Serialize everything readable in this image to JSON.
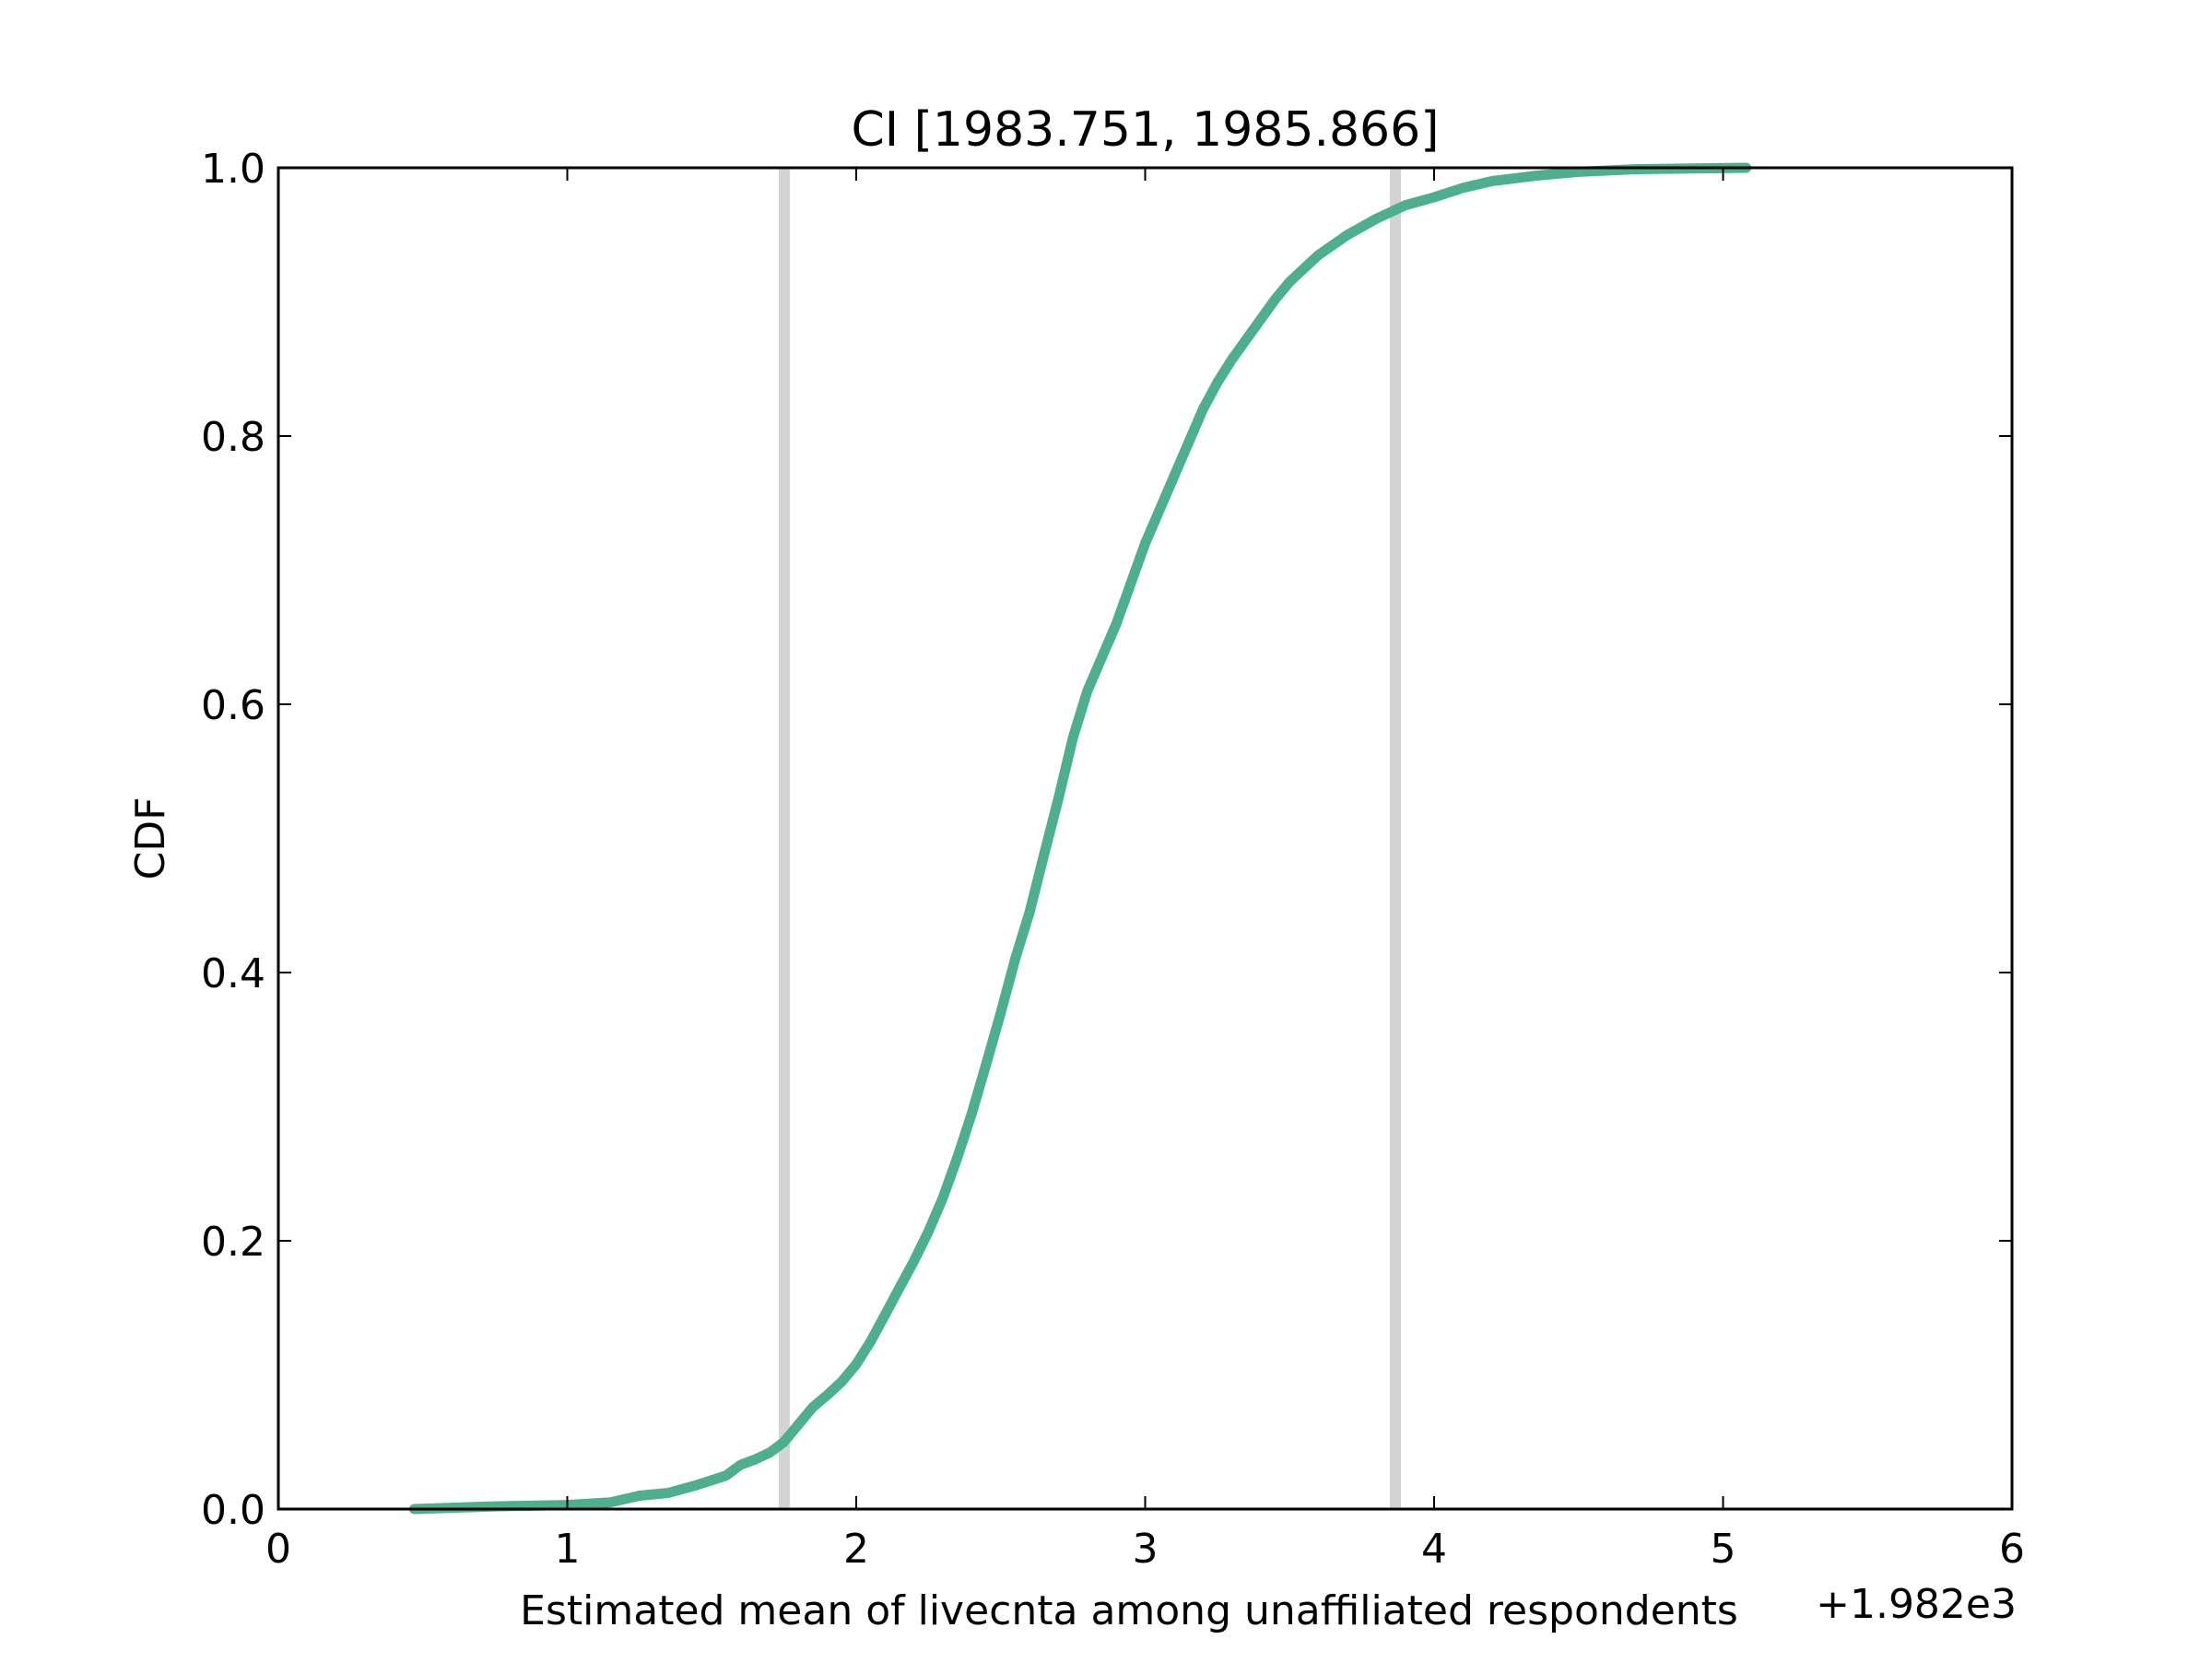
{
  "chart_data": {
    "type": "line",
    "title": "CI [1983.751, 1985.866]",
    "xlabel": "Estimated mean of livecnta among unaffiliated respondents",
    "ylabel": "CDF",
    "x_offset_label": "+1.982e3",
    "xlim": [
      0,
      6
    ],
    "ylim": [
      0,
      1
    ],
    "xticks": [
      0,
      1,
      2,
      3,
      4,
      5,
      6
    ],
    "xtick_labels": [
      "0",
      "1",
      "2",
      "3",
      "4",
      "5",
      "6"
    ],
    "yticks": [
      0,
      0.2,
      0.4,
      0.6,
      0.8,
      1.0
    ],
    "ytick_labels": [
      "0.0",
      "0.2",
      "0.4",
      "0.6",
      "0.8",
      "1.0"
    ],
    "grid": false,
    "series": [
      {
        "color": "#4daf8f",
        "points": [
          [
            0.47,
            0.0
          ],
          [
            0.75,
            0.002
          ],
          [
            1.0,
            0.003
          ],
          [
            1.15,
            0.005
          ],
          [
            1.25,
            0.01
          ],
          [
            1.35,
            0.012
          ],
          [
            1.45,
            0.018
          ],
          [
            1.55,
            0.025
          ],
          [
            1.6,
            0.033
          ],
          [
            1.65,
            0.037
          ],
          [
            1.7,
            0.042
          ],
          [
            1.75,
            0.05
          ],
          [
            1.8,
            0.063
          ],
          [
            1.85,
            0.076
          ],
          [
            1.9,
            0.085
          ],
          [
            1.95,
            0.095
          ],
          [
            2.0,
            0.108
          ],
          [
            2.05,
            0.125
          ],
          [
            2.1,
            0.145
          ],
          [
            2.15,
            0.165
          ],
          [
            2.2,
            0.185
          ],
          [
            2.25,
            0.207
          ],
          [
            2.3,
            0.232
          ],
          [
            2.35,
            0.262
          ],
          [
            2.4,
            0.295
          ],
          [
            2.45,
            0.332
          ],
          [
            2.5,
            0.37
          ],
          [
            2.55,
            0.41
          ],
          [
            2.6,
            0.445
          ],
          [
            2.65,
            0.488
          ],
          [
            2.7,
            0.53
          ],
          [
            2.75,
            0.575
          ],
          [
            2.8,
            0.61
          ],
          [
            2.85,
            0.635
          ],
          [
            2.9,
            0.66
          ],
          [
            2.95,
            0.69
          ],
          [
            3.0,
            0.72
          ],
          [
            3.05,
            0.745
          ],
          [
            3.1,
            0.77
          ],
          [
            3.15,
            0.795
          ],
          [
            3.2,
            0.82
          ],
          [
            3.25,
            0.84
          ],
          [
            3.3,
            0.857
          ],
          [
            3.35,
            0.872
          ],
          [
            3.4,
            0.887
          ],
          [
            3.45,
            0.902
          ],
          [
            3.5,
            0.915
          ],
          [
            3.55,
            0.925
          ],
          [
            3.6,
            0.935
          ],
          [
            3.7,
            0.95
          ],
          [
            3.8,
            0.962
          ],
          [
            3.9,
            0.972
          ],
          [
            4.0,
            0.978
          ],
          [
            4.1,
            0.985
          ],
          [
            4.2,
            0.99
          ],
          [
            4.35,
            0.994
          ],
          [
            4.5,
            0.997
          ],
          [
            4.7,
            0.999
          ],
          [
            5.08,
            1.0
          ]
        ]
      }
    ],
    "reference_lines": {
      "orientation": "vertical",
      "color": "#d3d3d3",
      "x": [
        1.751,
        3.866
      ]
    }
  }
}
